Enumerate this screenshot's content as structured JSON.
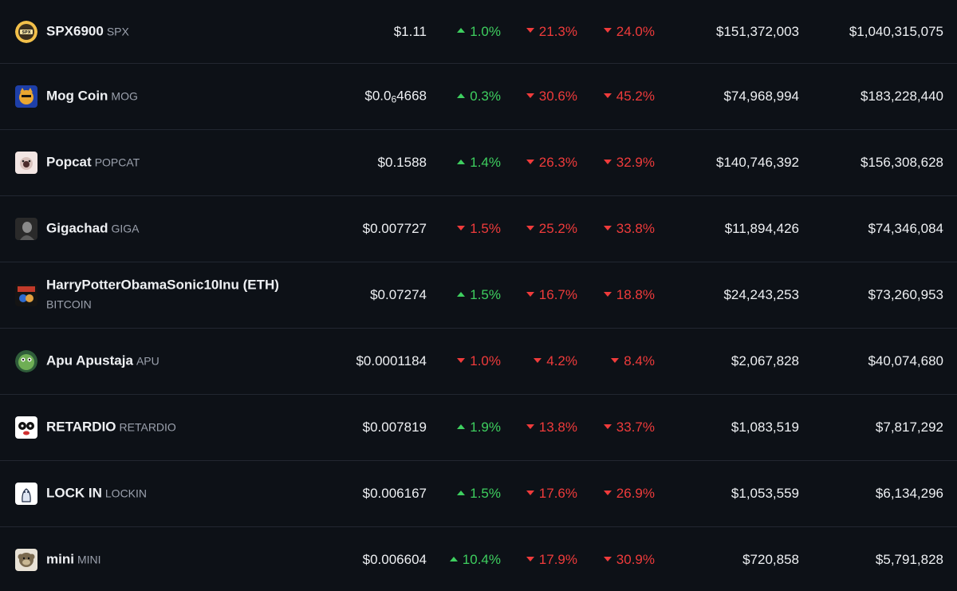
{
  "rows": [
    {
      "name": "SPX6900",
      "symbol": "SPX",
      "price": "$1.11",
      "h1": {
        "dir": "up",
        "v": "1.0%"
      },
      "h24": {
        "dir": "down",
        "v": "21.3%"
      },
      "d7": {
        "dir": "down",
        "v": "24.0%"
      },
      "volume": "$151,372,003",
      "market_cap": "$1,040,315,075",
      "icon": "spx6900-logo-icon"
    },
    {
      "name": "Mog Coin",
      "symbol": "MOG",
      "price_main": "$0.0",
      "price_sub": "6",
      "price_rest": "4668",
      "h1": {
        "dir": "up",
        "v": "0.3%"
      },
      "h24": {
        "dir": "down",
        "v": "30.6%"
      },
      "d7": {
        "dir": "down",
        "v": "45.2%"
      },
      "volume": "$74,968,994",
      "market_cap": "$183,228,440",
      "icon": "mog-coin-logo-icon"
    },
    {
      "name": "Popcat",
      "symbol": "POPCAT",
      "price": "$0.1588",
      "h1": {
        "dir": "up",
        "v": "1.4%"
      },
      "h24": {
        "dir": "down",
        "v": "26.3%"
      },
      "d7": {
        "dir": "down",
        "v": "32.9%"
      },
      "volume": "$140,746,392",
      "market_cap": "$156,308,628",
      "icon": "popcat-logo-icon"
    },
    {
      "name": "Gigachad",
      "symbol": "GIGA",
      "price": "$0.007727",
      "h1": {
        "dir": "down",
        "v": "1.5%"
      },
      "h24": {
        "dir": "down",
        "v": "25.2%"
      },
      "d7": {
        "dir": "down",
        "v": "33.8%"
      },
      "volume": "$11,894,426",
      "market_cap": "$74,346,084",
      "icon": "gigachad-logo-icon"
    },
    {
      "name": "HarryPotterObamaSonic10Inu (ETH)",
      "symbol": "BITCOIN",
      "price": "$0.07274",
      "h1": {
        "dir": "up",
        "v": "1.5%"
      },
      "h24": {
        "dir": "down",
        "v": "16.7%"
      },
      "d7": {
        "dir": "down",
        "v": "18.8%"
      },
      "volume": "$24,243,253",
      "market_cap": "$73,260,953",
      "icon": "bitcoin-hpos-logo-icon"
    },
    {
      "name": "Apu Apustaja",
      "symbol": "APU",
      "price": "$0.0001184",
      "h1": {
        "dir": "down",
        "v": "1.0%"
      },
      "h24": {
        "dir": "down",
        "v": "4.2%"
      },
      "d7": {
        "dir": "down",
        "v": "8.4%"
      },
      "volume": "$2,067,828",
      "market_cap": "$40,074,680",
      "icon": "apu-logo-icon"
    },
    {
      "name": "RETARDIO",
      "symbol": "RETARDIO",
      "price": "$0.007819",
      "h1": {
        "dir": "up",
        "v": "1.9%"
      },
      "h24": {
        "dir": "down",
        "v": "13.8%"
      },
      "d7": {
        "dir": "down",
        "v": "33.7%"
      },
      "volume": "$1,083,519",
      "market_cap": "$7,817,292",
      "icon": "retardio-logo-icon"
    },
    {
      "name": "LOCK IN",
      "symbol": "LOCKIN",
      "price": "$0.006167",
      "h1": {
        "dir": "up",
        "v": "1.5%"
      },
      "h24": {
        "dir": "down",
        "v": "17.6%"
      },
      "d7": {
        "dir": "down",
        "v": "26.9%"
      },
      "volume": "$1,053,559",
      "market_cap": "$6,134,296",
      "icon": "lockin-logo-icon"
    },
    {
      "name": "mini",
      "symbol": "MINI",
      "price": "$0.006604",
      "h1": {
        "dir": "up",
        "v": "10.4%"
      },
      "h24": {
        "dir": "down",
        "v": "17.9%"
      },
      "d7": {
        "dir": "down",
        "v": "30.9%"
      },
      "volume": "$720,858",
      "market_cap": "$5,791,828",
      "icon": "mini-logo-icon"
    }
  ],
  "colors": {
    "up": "#3ecf5f",
    "down": "#ef3b3b",
    "background": "#0d1117"
  }
}
